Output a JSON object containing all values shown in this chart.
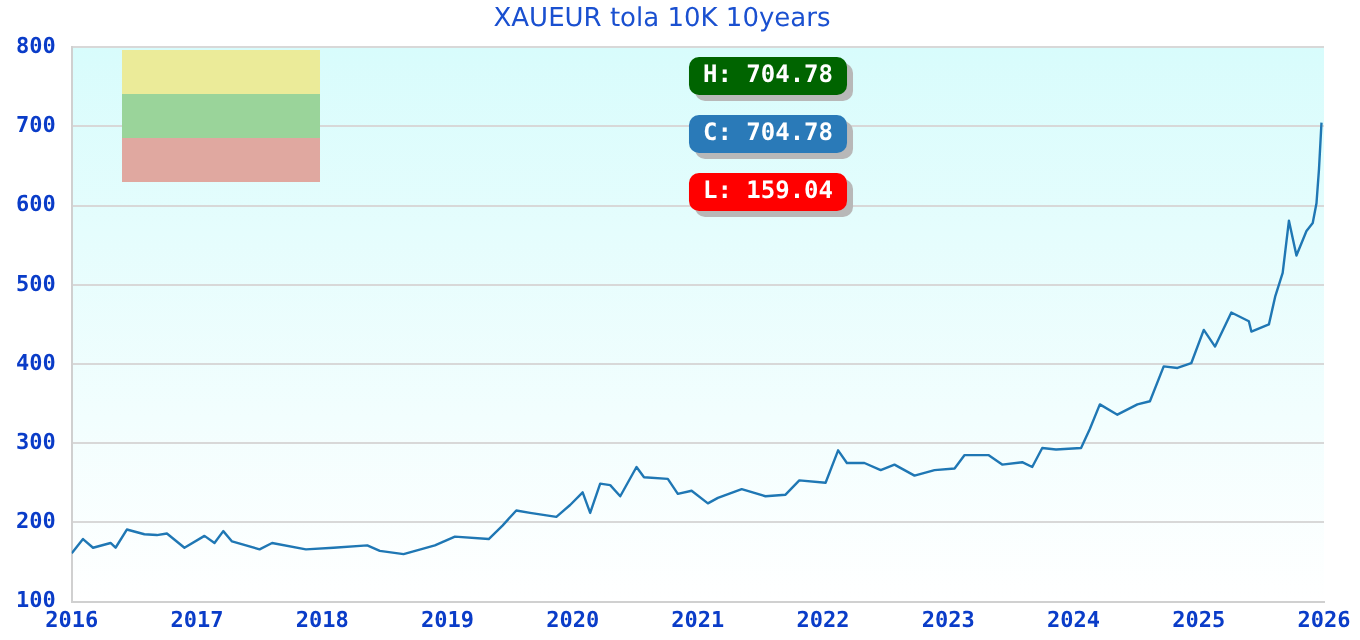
{
  "chart_data": {
    "type": "line",
    "title": "XAUEUR tola 10K 10years",
    "x": [
      2016.0,
      2016.09,
      2016.17,
      2016.31,
      2016.35,
      2016.44,
      2016.58,
      2016.68,
      2016.76,
      2016.9,
      2017.06,
      2017.14,
      2017.21,
      2017.28,
      2017.5,
      2017.6,
      2017.87,
      2018.09,
      2018.36,
      2018.46,
      2018.65,
      2018.9,
      2019.06,
      2019.33,
      2019.44,
      2019.55,
      2019.66,
      2019.87,
      2019.98,
      2020.08,
      2020.14,
      2020.22,
      2020.3,
      2020.38,
      2020.51,
      2020.57,
      2020.76,
      2020.84,
      2020.95,
      2021.08,
      2021.16,
      2021.35,
      2021.54,
      2021.7,
      2021.81,
      2022.02,
      2022.12,
      2022.19,
      2022.33,
      2022.46,
      2022.57,
      2022.73,
      2022.89,
      2023.05,
      2023.13,
      2023.32,
      2023.43,
      2023.59,
      2023.67,
      2023.75,
      2023.86,
      2024.06,
      2024.13,
      2024.21,
      2024.35,
      2024.51,
      2024.61,
      2024.72,
      2024.83,
      2024.94,
      2025.04,
      2025.13,
      2025.26,
      2025.4,
      2025.42,
      2025.56,
      2025.61,
      2025.67,
      2025.72,
      2025.78,
      2025.86,
      2025.91,
      2025.94,
      2025.96,
      2025.98
    ],
    "series": [
      {
        "color": "#1f77b4",
        "values": [
          161,
          179,
          168,
          174,
          168,
          191,
          185,
          184,
          186,
          168,
          183,
          174,
          189,
          176,
          166,
          174,
          166,
          168,
          171,
          164,
          160,
          171,
          182,
          179,
          196,
          215,
          212,
          207,
          222,
          238,
          212,
          249,
          247,
          233,
          270,
          257,
          255,
          236,
          240,
          224,
          231,
          242,
          233,
          235,
          253,
          250,
          291,
          275,
          275,
          266,
          273,
          259,
          266,
          268,
          285,
          285,
          273,
          276,
          270,
          294,
          292,
          294,
          318,
          349,
          336,
          349,
          353,
          397,
          395,
          401,
          443,
          422,
          465,
          454,
          441,
          450,
          485,
          515,
          581,
          537,
          568,
          578,
          603,
          646,
          704.78
        ]
      }
    ],
    "xlim": [
      2016,
      2026
    ],
    "xticks": [
      2016,
      2017,
      2018,
      2019,
      2020,
      2021,
      2022,
      2023,
      2024,
      2025,
      2026
    ],
    "ylim": [
      100,
      800
    ],
    "yticks": [
      100,
      200,
      300,
      400,
      500,
      600,
      700,
      800
    ],
    "grid": "y",
    "legend": false,
    "marker": "none",
    "line_style": "solid",
    "annotations": [
      "H: 704.78",
      "C: 704.78",
      "L: 159.04"
    ]
  }
}
